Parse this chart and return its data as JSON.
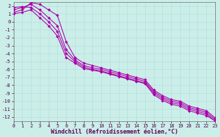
{
  "background_color": "#cceee8",
  "grid_color": "#aadddd",
  "line_color": "#aa00aa",
  "marker": "D",
  "markersize": 2.0,
  "linewidth": 0.8,
  "xlabel": "Windchill (Refroidissement éolien,°C)",
  "xlabel_fontsize": 6.0,
  "tick_fontsize": 5.0,
  "xlim": [
    0,
    23
  ],
  "ylim": [
    -12.5,
    2.5
  ],
  "yticks": [
    2,
    1,
    0,
    -1,
    -2,
    -3,
    -4,
    -5,
    -6,
    -7,
    -8,
    -9,
    -10,
    -11,
    -12
  ],
  "xticks": [
    0,
    1,
    2,
    3,
    4,
    5,
    6,
    7,
    8,
    9,
    10,
    11,
    12,
    13,
    14,
    15,
    16,
    17,
    18,
    19,
    20,
    21,
    22,
    23
  ],
  "series": [
    {
      "x": [
        0,
        1,
        2,
        3,
        4,
        5,
        6,
        7,
        8,
        9,
        10,
        11,
        12,
        13,
        14,
        15,
        16,
        17,
        18,
        19,
        20,
        21,
        22,
        23
      ],
      "y": [
        1.5,
        1.8,
        2.2,
        1.5,
        0.5,
        -0.5,
        -3.5,
        -4.8,
        -5.5,
        -5.8,
        -6.0,
        -6.3,
        -6.6,
        -6.9,
        -7.2,
        -7.5,
        -8.8,
        -9.5,
        -10.0,
        -10.2,
        -10.8,
        -11.1,
        -11.4,
        -12.3
      ]
    },
    {
      "x": [
        0,
        1,
        2,
        3,
        4,
        5,
        6,
        7,
        8,
        9,
        10,
        11,
        12,
        13,
        14,
        15,
        16,
        17,
        18,
        19,
        20,
        21,
        22,
        23
      ],
      "y": [
        1.2,
        1.5,
        2.4,
        2.2,
        1.5,
        0.8,
        -2.5,
        -4.5,
        -5.2,
        -5.5,
        -5.8,
        -6.1,
        -6.4,
        -6.7,
        -7.0,
        -7.3,
        -8.6,
        -9.3,
        -9.8,
        -10.0,
        -10.6,
        -10.9,
        -11.2,
        -12.1
      ]
    },
    {
      "x": [
        0,
        1,
        2,
        3,
        4,
        5,
        6,
        7,
        8,
        9,
        10,
        11,
        12,
        13,
        14,
        15,
        16,
        17,
        18,
        19,
        20,
        21,
        22,
        23
      ],
      "y": [
        1.8,
        1.9,
        1.8,
        1.0,
        0.0,
        -1.2,
        -4.0,
        -5.0,
        -5.7,
        -6.0,
        -6.2,
        -6.5,
        -6.8,
        -7.1,
        -7.4,
        -7.7,
        -9.0,
        -9.7,
        -10.2,
        -10.4,
        -11.0,
        -11.3,
        -11.6,
        -12.5
      ]
    },
    {
      "x": [
        0,
        1,
        2,
        3,
        4,
        5,
        6,
        7,
        8,
        9,
        10,
        11,
        12,
        13,
        14,
        15,
        16,
        17,
        18,
        19,
        20,
        21,
        22,
        23
      ],
      "y": [
        1.0,
        1.2,
        1.5,
        0.5,
        -0.5,
        -1.8,
        -4.5,
        -5.2,
        -5.9,
        -6.1,
        -6.3,
        -6.6,
        -6.9,
        -7.2,
        -7.5,
        -7.8,
        -9.2,
        -9.9,
        -10.4,
        -10.6,
        -11.2,
        -11.5,
        -11.8,
        -12.5
      ]
    }
  ]
}
